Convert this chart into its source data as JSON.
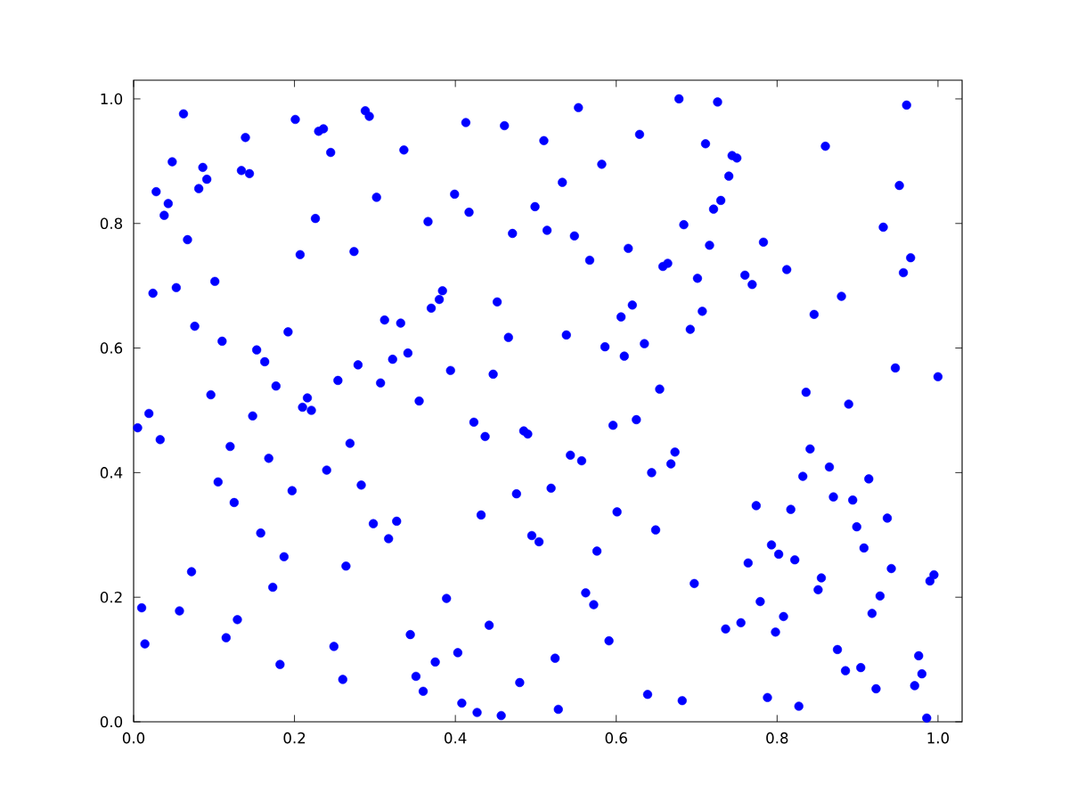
{
  "chart_data": {
    "type": "scatter",
    "marker": "circle",
    "xlim": [
      0,
      1.03
    ],
    "ylim": [
      0,
      1.03
    ],
    "xticks": [
      {
        "value": 0,
        "label": "0.0"
      },
      0.2,
      0.4,
      0.6,
      0.8,
      {
        "value": 1,
        "label": "1.0"
      }
    ],
    "yticks": [
      {
        "value": 0,
        "label": "0.0"
      },
      0.2,
      0.4,
      0.6,
      0.8,
      {
        "value": 1,
        "label": "1.0"
      }
    ],
    "series": [
      {
        "color": "#0000ff",
        "x": [
          0.062,
          0.201,
          0.288,
          0.293,
          0.23,
          0.236,
          0.139,
          0.245,
          0.336,
          0.048,
          0.086,
          0.091,
          0.081,
          0.134,
          0.144,
          0.028,
          0.043,
          0.038,
          0.302,
          0.226,
          0.067,
          0.207,
          0.274,
          0.024,
          0.053,
          0.101,
          0.312,
          0.332,
          0.076,
          0.192,
          0.11,
          0.153,
          0.163,
          0.322,
          0.341,
          0.279,
          0.254,
          0.307,
          0.177,
          0.096,
          0.216,
          0.221,
          0.21,
          0.019,
          0.005,
          0.033,
          0.148,
          0.12,
          0.168,
          0.269,
          0.24,
          0.105,
          0.197,
          0.283,
          0.125,
          0.298,
          0.327,
          0.317,
          0.158,
          0.187,
          0.264,
          0.072,
          0.173,
          0.01,
          0.057,
          0.129,
          0.014,
          0.115,
          0.249,
          0.344,
          0.182,
          0.26,
          0.678,
          0.553,
          0.413,
          0.461,
          0.51,
          0.629,
          0.582,
          0.533,
          0.399,
          0.499,
          0.417,
          0.366,
          0.471,
          0.514,
          0.548,
          0.684,
          0.615,
          0.567,
          0.658,
          0.664,
          0.384,
          0.38,
          0.37,
          0.452,
          0.62,
          0.606,
          0.466,
          0.538,
          0.586,
          0.635,
          0.61,
          0.394,
          0.447,
          0.654,
          0.355,
          0.423,
          0.625,
          0.596,
          0.437,
          0.485,
          0.49,
          0.543,
          0.557,
          0.673,
          0.668,
          0.644,
          0.519,
          0.476,
          0.432,
          0.601,
          0.649,
          0.495,
          0.504,
          0.576,
          0.389,
          0.562,
          0.572,
          0.442,
          0.591,
          0.403,
          0.524,
          0.375,
          0.351,
          0.48,
          0.36,
          0.639,
          0.682,
          0.408,
          0.427,
          0.528,
          0.457,
          0.726,
          0.961,
          0.711,
          0.86,
          0.744,
          0.75,
          0.74,
          0.952,
          0.73,
          0.721,
          0.932,
          0.716,
          0.783,
          0.966,
          0.957,
          0.812,
          0.701,
          0.76,
          0.769,
          0.88,
          0.707,
          0.846,
          0.692,
          0.947,
          1.0,
          0.836,
          0.889,
          0.841,
          0.865,
          0.832,
          0.914,
          0.87,
          0.894,
          0.774,
          0.817,
          0.937,
          0.899,
          0.793,
          0.802,
          0.908,
          0.764,
          0.822,
          0.942,
          0.697,
          0.855,
          0.851,
          0.995,
          0.99,
          0.928,
          0.779,
          0.918,
          0.755,
          0.736,
          0.808,
          0.798,
          0.875,
          0.976,
          0.885,
          0.904,
          0.98,
          0.971,
          0.923,
          0.788,
          0.827,
          0.986
        ],
        "values": [
          0.976,
          0.967,
          0.981,
          0.972,
          0.948,
          0.952,
          0.938,
          0.914,
          0.918,
          0.899,
          0.89,
          0.871,
          0.856,
          0.885,
          0.88,
          0.851,
          0.832,
          0.813,
          0.842,
          0.808,
          0.774,
          0.75,
          0.755,
          0.688,
          0.697,
          0.707,
          0.645,
          0.64,
          0.635,
          0.626,
          0.611,
          0.597,
          0.578,
          0.582,
          0.592,
          0.573,
          0.548,
          0.544,
          0.539,
          0.525,
          0.52,
          0.5,
          0.505,
          0.495,
          0.472,
          0.453,
          0.491,
          0.442,
          0.423,
          0.447,
          0.404,
          0.385,
          0.371,
          0.38,
          0.352,
          0.318,
          0.322,
          0.294,
          0.303,
          0.265,
          0.25,
          0.241,
          0.216,
          0.183,
          0.178,
          0.164,
          0.125,
          0.135,
          0.121,
          0.14,
          0.092,
          0.068,
          1.0,
          0.986,
          0.962,
          0.957,
          0.933,
          0.943,
          0.895,
          0.866,
          0.847,
          0.827,
          0.818,
          0.803,
          0.784,
          0.789,
          0.78,
          0.798,
          0.76,
          0.741,
          0.731,
          0.736,
          0.692,
          0.678,
          0.664,
          0.674,
          0.669,
          0.65,
          0.617,
          0.621,
          0.602,
          0.607,
          0.587,
          0.564,
          0.558,
          0.534,
          0.515,
          0.481,
          0.485,
          0.476,
          0.458,
          0.467,
          0.462,
          0.428,
          0.419,
          0.433,
          0.414,
          0.4,
          0.375,
          0.366,
          0.332,
          0.337,
          0.308,
          0.299,
          0.289,
          0.274,
          0.198,
          0.207,
          0.188,
          0.155,
          0.13,
          0.111,
          0.102,
          0.096,
          0.073,
          0.063,
          0.049,
          0.044,
          0.034,
          0.03,
          0.015,
          0.02,
          0.01,
          0.995,
          0.99,
          0.928,
          0.924,
          0.909,
          0.905,
          0.876,
          0.861,
          0.837,
          0.823,
          0.794,
          0.765,
          0.77,
          0.745,
          0.721,
          0.726,
          0.712,
          0.717,
          0.702,
          0.683,
          0.659,
          0.654,
          0.63,
          0.568,
          0.554,
          0.529,
          0.51,
          0.438,
          0.409,
          0.394,
          0.39,
          0.361,
          0.356,
          0.347,
          0.341,
          0.327,
          0.313,
          0.284,
          0.269,
          0.279,
          0.255,
          0.26,
          0.246,
          0.222,
          0.231,
          0.212,
          0.236,
          0.226,
          0.202,
          0.193,
          0.174,
          0.159,
          0.149,
          0.169,
          0.144,
          0.116,
          0.106,
          0.082,
          0.087,
          0.077,
          0.058,
          0.053,
          0.039,
          0.025,
          0.006
        ]
      }
    ]
  }
}
